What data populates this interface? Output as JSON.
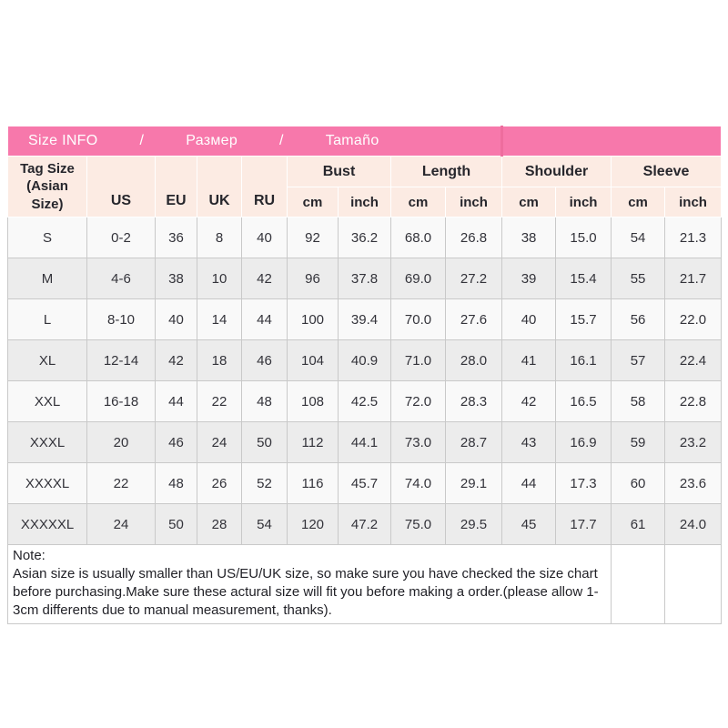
{
  "banner": {
    "title_parts": [
      "Size INFO",
      "/",
      "Размер",
      "/",
      "Tamaño"
    ]
  },
  "chart_data": {
    "type": "table",
    "title": "Size INFO / Размер / Tamaño",
    "header": {
      "tag_line1": "Tag Size",
      "tag_line2": "(Asian Size)",
      "size_systems": [
        "US",
        "EU",
        "UK",
        "RU"
      ],
      "measure_groups": [
        "Bust",
        "Length",
        "Shoulder",
        "Sleeve"
      ],
      "units": [
        "cm",
        "inch",
        "cm",
        "inch",
        "cm",
        "inch",
        "cm",
        "inch"
      ]
    },
    "columns": [
      "Tag Size (Asian Size)",
      "US",
      "EU",
      "UK",
      "RU",
      "Bust cm",
      "Bust inch",
      "Length cm",
      "Length inch",
      "Shoulder cm",
      "Shoulder inch",
      "Sleeve cm",
      "Sleeve inch"
    ],
    "rows": [
      [
        "S",
        "0-2",
        "36",
        "8",
        "40",
        "92",
        "36.2",
        "68.0",
        "26.8",
        "38",
        "15.0",
        "54",
        "21.3"
      ],
      [
        "M",
        "4-6",
        "38",
        "10",
        "42",
        "96",
        "37.8",
        "69.0",
        "27.2",
        "39",
        "15.4",
        "55",
        "21.7"
      ],
      [
        "L",
        "8-10",
        "40",
        "14",
        "44",
        "100",
        "39.4",
        "70.0",
        "27.6",
        "40",
        "15.7",
        "56",
        "22.0"
      ],
      [
        "XL",
        "12-14",
        "42",
        "18",
        "46",
        "104",
        "40.9",
        "71.0",
        "28.0",
        "41",
        "16.1",
        "57",
        "22.4"
      ],
      [
        "XXL",
        "16-18",
        "44",
        "22",
        "48",
        "108",
        "42.5",
        "72.0",
        "28.3",
        "42",
        "16.5",
        "58",
        "22.8"
      ],
      [
        "XXXL",
        "20",
        "46",
        "24",
        "50",
        "112",
        "44.1",
        "73.0",
        "28.7",
        "43",
        "16.9",
        "59",
        "23.2"
      ],
      [
        "XXXXL",
        "22",
        "48",
        "26",
        "52",
        "116",
        "45.7",
        "74.0",
        "29.1",
        "44",
        "17.3",
        "60",
        "23.6"
      ],
      [
        "XXXXXL",
        "24",
        "50",
        "28",
        "54",
        "120",
        "47.2",
        "75.0",
        "29.5",
        "45",
        "17.7",
        "61",
        "24.0"
      ]
    ]
  },
  "note": {
    "label": "Note:",
    "text": "Asian size is usually smaller than US/EU/UK size, so make sure you have checked the size chart before purchasing.Make sure these actural size will fit you before making a order.(please allow 1-3cm differents due to manual measurement, thanks)."
  },
  "colors": {
    "banner_pink": "#f778ab",
    "banner_divider": "#ee6d9e",
    "header_peach": "#fcebe3",
    "row_light": "#f9f9f9",
    "row_shade": "#ececec",
    "border_gray": "#c9c9c9",
    "banner_text": "#ffffff",
    "body_text": "#33333a"
  }
}
